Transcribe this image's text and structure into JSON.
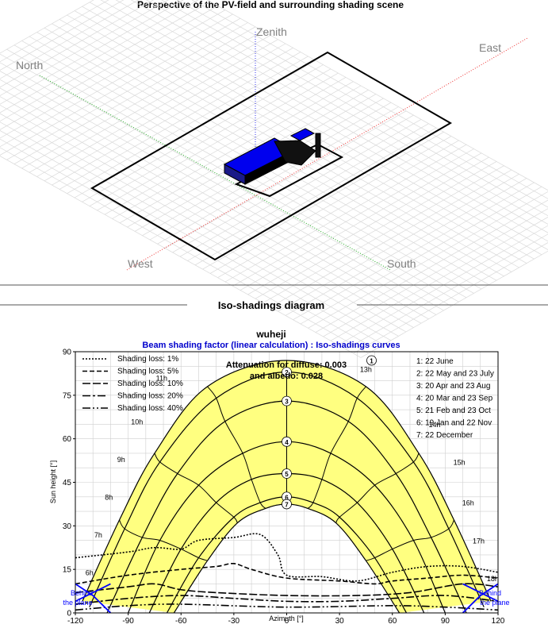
{
  "perspective": {
    "title": "Perspective of the PV-field and surrounding shading scene",
    "labels": {
      "zenith": "Zenith",
      "north": "North",
      "east": "East",
      "west": "West",
      "south": "South"
    }
  },
  "section": {
    "title": "Iso-shadings diagram"
  },
  "chart_data": {
    "type": "line",
    "title": "wuheji",
    "subtitle": "Beam shading factor (linear calculation) : Iso-shadings curves",
    "xlabel": "Azimuth [°]",
    "ylabel": "Sun height [°]",
    "xlim": [
      -120,
      120
    ],
    "ylim": [
      0,
      90
    ],
    "xticks": [
      -120,
      -90,
      -60,
      -30,
      0,
      30,
      60,
      90,
      120
    ],
    "yticks": [
      0,
      15,
      30,
      45,
      60,
      75,
      90
    ],
    "grid": true,
    "annotation": [
      "Attenuation for diffuse: 0.003",
      "and albedo: 0.028"
    ],
    "behind_label": [
      "Behind",
      "the plane"
    ],
    "loss_legend": [
      {
        "label": "Shading loss: 1%",
        "dash": "2,2"
      },
      {
        "label": "Shading loss: 5%",
        "dash": "6,3"
      },
      {
        "label": "Shading loss: 10%",
        "dash": "10,3"
      },
      {
        "label": "Shading loss: 20%",
        "dash": "10,3,3,3"
      },
      {
        "label": "Shading loss: 40%",
        "dash": "10,3,2,3,2,3"
      }
    ],
    "date_legend": [
      "1: 22 June",
      "2: 22 May and 23 July",
      "3: 20 Apr and 23 Aug",
      "4: 20 Mar and 23 Sep",
      "5: 21 Feb and 23 Oct",
      "6: 19 Jan and 22 Nov",
      "7: 22 December"
    ],
    "sun_paths": [
      {
        "id": "1",
        "points": [
          [
            -116,
            4
          ],
          [
            -95,
            32
          ],
          [
            -75,
            55
          ],
          [
            -45,
            78
          ],
          [
            0,
            87
          ],
          [
            45,
            78
          ],
          [
            75,
            55
          ],
          [
            95,
            32
          ],
          [
            116,
            4
          ]
        ]
      },
      {
        "id": "2",
        "points": [
          [
            -112,
            2
          ],
          [
            -92,
            29
          ],
          [
            -72,
            52
          ],
          [
            -40,
            74
          ],
          [
            0,
            83
          ],
          [
            40,
            74
          ],
          [
            72,
            52
          ],
          [
            92,
            29
          ],
          [
            112,
            2
          ]
        ]
      },
      {
        "id": "3",
        "points": [
          [
            -102,
            0
          ],
          [
            -82,
            26
          ],
          [
            -62,
            48
          ],
          [
            -35,
            66
          ],
          [
            0,
            73
          ],
          [
            35,
            66
          ],
          [
            62,
            48
          ],
          [
            82,
            26
          ],
          [
            102,
            0
          ]
        ]
      },
      {
        "id": "4",
        "points": [
          [
            -90,
            0
          ],
          [
            -72,
            25
          ],
          [
            -50,
            44
          ],
          [
            -25,
            55
          ],
          [
            0,
            59
          ],
          [
            25,
            55
          ],
          [
            50,
            44
          ],
          [
            72,
            25
          ],
          [
            90,
            0
          ]
        ]
      },
      {
        "id": "5",
        "points": [
          [
            -78,
            0
          ],
          [
            -60,
            22
          ],
          [
            -40,
            38
          ],
          [
            -20,
            46
          ],
          [
            0,
            48
          ],
          [
            20,
            46
          ],
          [
            40,
            38
          ],
          [
            60,
            22
          ],
          [
            78,
            0
          ]
        ]
      },
      {
        "id": "6",
        "points": [
          [
            -68,
            0
          ],
          [
            -50,
            19
          ],
          [
            -30,
            33
          ],
          [
            -15,
            38
          ],
          [
            0,
            40
          ],
          [
            15,
            38
          ],
          [
            30,
            33
          ],
          [
            50,
            19
          ],
          [
            68,
            0
          ]
        ]
      },
      {
        "id": "7",
        "points": [
          [
            -64,
            0
          ],
          [
            -45,
            18
          ],
          [
            -28,
            31
          ],
          [
            -12,
            36
          ],
          [
            0,
            37.5
          ],
          [
            12,
            36
          ],
          [
            28,
            31
          ],
          [
            45,
            18
          ],
          [
            64,
            0
          ]
        ]
      }
    ],
    "hour_labels": [
      {
        "label": "6h",
        "x": -112,
        "y": 13
      },
      {
        "label": "7h",
        "x": -107,
        "y": 26
      },
      {
        "label": "8h",
        "x": -101,
        "y": 39
      },
      {
        "label": "9h",
        "x": -94,
        "y": 52
      },
      {
        "label": "10h",
        "x": -85,
        "y": 65
      },
      {
        "label": "11h",
        "x": -71,
        "y": 80
      },
      {
        "label": "13h",
        "x": 45,
        "y": 83
      },
      {
        "label": "14h",
        "x": 84,
        "y": 64
      },
      {
        "label": "15h",
        "x": 98,
        "y": 51
      },
      {
        "label": "16h",
        "x": 103,
        "y": 37
      },
      {
        "label": "17h",
        "x": 109,
        "y": 24
      },
      {
        "label": "18h",
        "x": 117,
        "y": 11
      }
    ],
    "shading_curves": [
      {
        "loss": "1%",
        "dash": "2,2",
        "points": [
          [
            -120,
            19
          ],
          [
            -90,
            21
          ],
          [
            -75,
            22.5
          ],
          [
            -60,
            22
          ],
          [
            -50,
            25
          ],
          [
            -30,
            26
          ],
          [
            -15,
            27
          ],
          [
            -5,
            20
          ],
          [
            0,
            13
          ],
          [
            20,
            12.5
          ],
          [
            40,
            11
          ],
          [
            60,
            14
          ],
          [
            80,
            16
          ],
          [
            100,
            16
          ],
          [
            120,
            14
          ]
        ]
      },
      {
        "loss": "5%",
        "dash": "6,3",
        "points": [
          [
            -120,
            10
          ],
          [
            -90,
            13
          ],
          [
            -60,
            15
          ],
          [
            -40,
            16
          ],
          [
            -30,
            17
          ],
          [
            -20,
            15
          ],
          [
            0,
            12
          ],
          [
            30,
            11
          ],
          [
            50,
            10
          ],
          [
            60,
            11
          ],
          [
            80,
            12
          ],
          [
            100,
            13
          ],
          [
            120,
            12
          ]
        ]
      },
      {
        "loss": "10%",
        "dash": "10,3",
        "points": [
          [
            -120,
            7
          ],
          [
            -90,
            9
          ],
          [
            -75,
            10
          ],
          [
            -60,
            8
          ],
          [
            -40,
            7
          ],
          [
            0,
            6
          ],
          [
            40,
            6
          ],
          [
            70,
            7
          ],
          [
            100,
            10
          ],
          [
            120,
            9
          ]
        ]
      },
      {
        "loss": "20%",
        "dash": "10,3,3,3",
        "points": [
          [
            -120,
            3
          ],
          [
            -90,
            5
          ],
          [
            -60,
            6
          ],
          [
            -30,
            5
          ],
          [
            0,
            4
          ],
          [
            30,
            4
          ],
          [
            60,
            5
          ],
          [
            90,
            6
          ],
          [
            120,
            4
          ]
        ]
      },
      {
        "loss": "40%",
        "dash": "10,3,2,3,2,3",
        "points": [
          [
            -120,
            1
          ],
          [
            -90,
            2.5
          ],
          [
            -60,
            3
          ],
          [
            0,
            2
          ],
          [
            60,
            2.5
          ],
          [
            90,
            2
          ],
          [
            120,
            1
          ]
        ]
      }
    ],
    "behind_plane_lines": [
      {
        "side": "left",
        "points": [
          [
            -120,
            10
          ],
          [
            -110,
            6
          ],
          [
            -100,
            0
          ]
        ]
      },
      {
        "side": "left",
        "points": [
          [
            -120,
            4
          ],
          [
            -110,
            7
          ],
          [
            -100,
            10
          ]
        ]
      },
      {
        "side": "right",
        "points": [
          [
            100,
            0
          ],
          [
            110,
            6
          ],
          [
            120,
            10
          ]
        ]
      },
      {
        "side": "right",
        "points": [
          [
            100,
            10
          ],
          [
            110,
            7
          ],
          [
            120,
            4
          ]
        ]
      }
    ],
    "colors": {
      "fill": "#ffff80",
      "subtitle": "#0000cc",
      "behind": "#0000ff",
      "pv": "#0000ff"
    }
  }
}
